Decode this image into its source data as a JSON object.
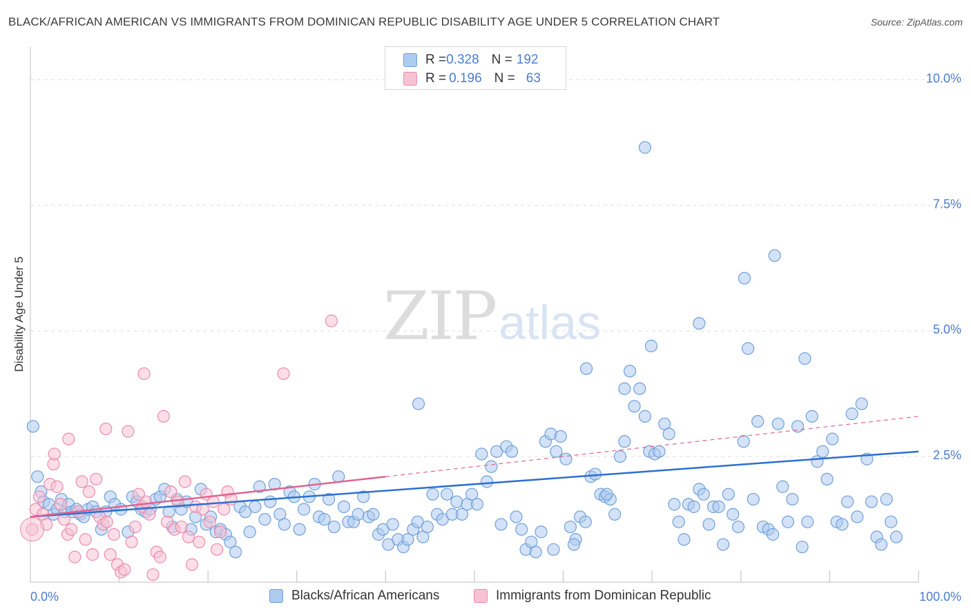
{
  "title": "BLACK/AFRICAN AMERICAN VS IMMIGRANTS FROM DOMINICAN REPUBLIC DISABILITY AGE UNDER 5 CORRELATION CHART",
  "source": "Source: ZipAtlas.com",
  "watermark": {
    "zip": "ZIP",
    "atlas": "atlas"
  },
  "colors": {
    "blue_fill": "#aecbf0",
    "blue_stroke": "#6f9fd8",
    "blue_line": "#2b6fd0",
    "pink_fill": "#f7c2d3",
    "pink_stroke": "#ec8aab",
    "pink_line": "#e0628f",
    "axis_text": "#4a7ccf",
    "grid": "#dedede"
  },
  "legend_top": [
    {
      "r_label": "R = ",
      "r_value": "0.328",
      "n_label": "N = ",
      "n_value": "192"
    },
    {
      "r_label": "R = ",
      "r_value": "0.196",
      "n_label": "N = ",
      "n_value": "63"
    }
  ],
  "chart_data": {
    "type": "scatter",
    "title": "BLACK/AFRICAN AMERICAN VS IMMIGRANTS FROM DOMINICAN REPUBLIC DISABILITY AGE UNDER 5 CORRELATION CHART",
    "xlabel": "",
    "ylabel": "Disability Age Under 5",
    "xlim": [
      0,
      100
    ],
    "ylim": [
      0,
      10.5
    ],
    "x_tick_labels": [
      "0.0%",
      "100.0%"
    ],
    "y_ticks": [
      2.5,
      5.0,
      7.5,
      10.0
    ],
    "y_tick_labels": [
      "2.5%",
      "5.0%",
      "7.5%",
      "10.0%"
    ],
    "grid": true,
    "legend_position": "bottom",
    "series": [
      {
        "name": "Blacks/African Americans",
        "color": "blue",
        "trend": {
          "x": [
            0,
            100
          ],
          "y": [
            1.3,
            2.6
          ],
          "dashed_from": null
        },
        "points": [
          [
            0.3,
            3.1
          ],
          [
            0.8,
            2.1
          ],
          [
            1.2,
            1.8
          ],
          [
            1.5,
            1.6
          ],
          [
            2.1,
            1.55
          ],
          [
            2.6,
            1.35
          ],
          [
            3.0,
            1.45
          ],
          [
            3.5,
            1.65
          ],
          [
            3.9,
            1.4
          ],
          [
            4.3,
            1.55
          ],
          [
            4.7,
            1.4
          ],
          [
            5.2,
            1.45
          ],
          [
            5.6,
            1.35
          ],
          [
            6.0,
            1.3
          ],
          [
            6.5,
            1.45
          ],
          [
            7.0,
            1.5
          ],
          [
            7.4,
            1.4
          ],
          [
            8.0,
            1.05
          ],
          [
            8.5,
            1.4
          ],
          [
            9.0,
            1.7
          ],
          [
            9.5,
            1.55
          ],
          [
            10.2,
            1.45
          ],
          [
            11.0,
            1.0
          ],
          [
            11.5,
            1.7
          ],
          [
            12.0,
            1.6
          ],
          [
            12.5,
            1.45
          ],
          [
            13.0,
            1.4
          ],
          [
            13.5,
            1.45
          ],
          [
            14.1,
            1.65
          ],
          [
            14.6,
            1.7
          ],
          [
            15.1,
            1.85
          ],
          [
            15.6,
            1.4
          ],
          [
            16.0,
            1.1
          ],
          [
            16.5,
            1.65
          ],
          [
            17.0,
            1.45
          ],
          [
            17.6,
            1.6
          ],
          [
            18.1,
            1.05
          ],
          [
            18.6,
            1.3
          ],
          [
            19.2,
            1.85
          ],
          [
            19.8,
            1.15
          ],
          [
            20.3,
            1.3
          ],
          [
            20.9,
            1.0
          ],
          [
            21.4,
            1.05
          ],
          [
            22.0,
            0.95
          ],
          [
            22.5,
            0.8
          ],
          [
            23.1,
            0.6
          ],
          [
            23.6,
            1.5
          ],
          [
            24.2,
            1.4
          ],
          [
            24.7,
            1.0
          ],
          [
            25.3,
            1.5
          ],
          [
            25.8,
            1.9
          ],
          [
            26.4,
            1.25
          ],
          [
            27.0,
            1.6
          ],
          [
            27.5,
            1.95
          ],
          [
            28.1,
            1.35
          ],
          [
            28.6,
            1.15
          ],
          [
            29.2,
            1.8
          ],
          [
            29.7,
            1.7
          ],
          [
            30.3,
            1.05
          ],
          [
            30.8,
            1.45
          ],
          [
            31.4,
            1.7
          ],
          [
            32.0,
            1.95
          ],
          [
            32.5,
            1.3
          ],
          [
            33.1,
            1.25
          ],
          [
            33.6,
            1.65
          ],
          [
            34.2,
            1.1
          ],
          [
            34.7,
            2.1
          ],
          [
            35.3,
            1.5
          ],
          [
            35.8,
            1.2
          ],
          [
            36.4,
            1.2
          ],
          [
            36.9,
            1.35
          ],
          [
            37.5,
            1.7
          ],
          [
            38.1,
            1.3
          ],
          [
            38.6,
            1.35
          ],
          [
            39.2,
            0.95
          ],
          [
            39.7,
            1.05
          ],
          [
            40.3,
            0.75
          ],
          [
            40.8,
            1.15
          ],
          [
            41.4,
            0.85
          ],
          [
            42.0,
            0.7
          ],
          [
            42.5,
            0.85
          ],
          [
            43.1,
            1.05
          ],
          [
            43.6,
            1.2
          ],
          [
            44.2,
            0.9
          ],
          [
            44.7,
            1.1
          ],
          [
            45.3,
            1.75
          ],
          [
            45.8,
            1.35
          ],
          [
            46.4,
            1.25
          ],
          [
            46.9,
            1.75
          ],
          [
            47.5,
            1.35
          ],
          [
            48.0,
            1.6
          ],
          [
            48.6,
            1.35
          ],
          [
            49.2,
            1.55
          ],
          [
            49.7,
            1.75
          ],
          [
            50.3,
            1.55
          ],
          [
            50.8,
            2.55
          ],
          [
            51.4,
            2.0
          ],
          [
            51.9,
            2.3
          ],
          [
            52.5,
            2.6
          ],
          [
            53.0,
            1.15
          ],
          [
            53.6,
            2.7
          ],
          [
            54.2,
            2.6
          ],
          [
            54.7,
            1.3
          ],
          [
            55.3,
            1.05
          ],
          [
            55.8,
            0.65
          ],
          [
            56.4,
            0.8
          ],
          [
            56.9,
            0.6
          ],
          [
            57.5,
            1.0
          ],
          [
            58.0,
            2.8
          ],
          [
            58.6,
            2.95
          ],
          [
            59.2,
            2.6
          ],
          [
            59.7,
            2.9
          ],
          [
            60.3,
            2.45
          ],
          [
            60.8,
            1.1
          ],
          [
            61.4,
            0.85
          ],
          [
            61.9,
            1.3
          ],
          [
            62.5,
            1.2
          ],
          [
            63.1,
            2.1
          ],
          [
            63.6,
            2.15
          ],
          [
            64.2,
            1.75
          ],
          [
            64.7,
            1.7
          ],
          [
            65.3,
            1.65
          ],
          [
            65.8,
            1.35
          ],
          [
            66.4,
            2.5
          ],
          [
            66.9,
            2.8
          ],
          [
            67.5,
            4.2
          ],
          [
            68.0,
            3.5
          ],
          [
            68.6,
            3.85
          ],
          [
            69.2,
            3.3
          ],
          [
            69.7,
            2.6
          ],
          [
            70.3,
            2.55
          ],
          [
            70.8,
            2.6
          ],
          [
            71.4,
            3.15
          ],
          [
            71.9,
            2.95
          ],
          [
            72.5,
            1.55
          ],
          [
            73.0,
            1.2
          ],
          [
            73.6,
            0.85
          ],
          [
            74.1,
            1.55
          ],
          [
            74.7,
            1.5
          ],
          [
            75.3,
            1.85
          ],
          [
            75.8,
            1.75
          ],
          [
            76.4,
            1.15
          ],
          [
            76.9,
            1.5
          ],
          [
            77.5,
            1.5
          ],
          [
            78.0,
            0.75
          ],
          [
            78.6,
            1.75
          ],
          [
            79.1,
            1.35
          ],
          [
            79.7,
            1.1
          ],
          [
            80.3,
            2.8
          ],
          [
            80.8,
            4.65
          ],
          [
            81.4,
            1.65
          ],
          [
            81.9,
            3.2
          ],
          [
            82.5,
            1.1
          ],
          [
            83.1,
            1.05
          ],
          [
            83.6,
            0.95
          ],
          [
            84.2,
            3.15
          ],
          [
            84.7,
            1.9
          ],
          [
            85.3,
            1.2
          ],
          [
            85.8,
            1.65
          ],
          [
            86.4,
            3.1
          ],
          [
            86.9,
            0.7
          ],
          [
            87.5,
            1.2
          ],
          [
            88.0,
            3.3
          ],
          [
            88.6,
            2.4
          ],
          [
            89.2,
            2.6
          ],
          [
            89.7,
            2.05
          ],
          [
            90.3,
            2.85
          ],
          [
            90.8,
            1.2
          ],
          [
            91.4,
            1.15
          ],
          [
            92.0,
            1.6
          ],
          [
            92.5,
            3.35
          ],
          [
            93.1,
            1.3
          ],
          [
            93.6,
            3.55
          ],
          [
            94.2,
            2.45
          ],
          [
            94.7,
            1.6
          ],
          [
            95.3,
            0.9
          ],
          [
            95.8,
            0.75
          ],
          [
            96.4,
            1.65
          ],
          [
            96.9,
            1.2
          ],
          [
            97.5,
            0.9
          ],
          [
            58.9,
            0.65
          ],
          [
            61.2,
            0.75
          ],
          [
            64.9,
            1.75
          ],
          [
            69.2,
            8.65
          ],
          [
            83.8,
            6.5
          ],
          [
            80.4,
            6.05
          ],
          [
            75.3,
            5.15
          ],
          [
            69.9,
            4.7
          ],
          [
            87.2,
            4.45
          ],
          [
            62.6,
            4.25
          ],
          [
            66.9,
            3.85
          ],
          [
            43.7,
            3.55
          ]
        ]
      },
      {
        "name": "Immigrants from Dominican Republic",
        "color": "pink",
        "trend": {
          "x": [
            0,
            40
          ],
          "y": [
            1.3,
            2.1
          ],
          "dashed_from": 40,
          "x_end": 100,
          "y_end": 3.3
        },
        "points": [
          [
            0.2,
            1.05
          ],
          [
            0.6,
            1.45
          ],
          [
            1.0,
            1.7
          ],
          [
            1.4,
            1.35
          ],
          [
            1.8,
            1.15
          ],
          [
            2.2,
            1.95
          ],
          [
            2.6,
            2.35
          ],
          [
            3.0,
            1.9
          ],
          [
            3.4,
            1.55
          ],
          [
            3.8,
            1.25
          ],
          [
            4.2,
            0.95
          ],
          [
            4.6,
            1.05
          ],
          [
            5.0,
            0.5
          ],
          [
            5.4,
            1.4
          ],
          [
            5.8,
            2.0
          ],
          [
            6.2,
            0.85
          ],
          [
            6.6,
            1.8
          ],
          [
            7.0,
            0.55
          ],
          [
            7.4,
            2.05
          ],
          [
            7.8,
            1.3
          ],
          [
            8.2,
            1.15
          ],
          [
            8.6,
            1.2
          ],
          [
            9.0,
            0.55
          ],
          [
            9.4,
            0.95
          ],
          [
            9.8,
            0.35
          ],
          [
            10.2,
            0.2
          ],
          [
            10.6,
            0.25
          ],
          [
            11.0,
            3.0
          ],
          [
            11.4,
            0.8
          ],
          [
            11.8,
            1.1
          ],
          [
            12.2,
            1.75
          ],
          [
            12.6,
            1.5
          ],
          [
            13.0,
            1.6
          ],
          [
            13.4,
            1.35
          ],
          [
            13.8,
            0.15
          ],
          [
            14.2,
            0.6
          ],
          [
            14.6,
            0.5
          ],
          [
            15.0,
            3.3
          ],
          [
            15.4,
            1.2
          ],
          [
            15.8,
            1.8
          ],
          [
            16.2,
            1.05
          ],
          [
            16.6,
            1.6
          ],
          [
            17.0,
            1.1
          ],
          [
            17.4,
            2.0
          ],
          [
            17.8,
            0.9
          ],
          [
            18.2,
            0.35
          ],
          [
            18.6,
            1.5
          ],
          [
            19.0,
            0.8
          ],
          [
            19.4,
            1.45
          ],
          [
            19.8,
            1.75
          ],
          [
            20.2,
            1.2
          ],
          [
            20.6,
            1.6
          ],
          [
            21.0,
            0.65
          ],
          [
            21.4,
            1.0
          ],
          [
            21.8,
            1.45
          ],
          [
            22.2,
            1.8
          ],
          [
            22.6,
            1.65
          ],
          [
            8.5,
            3.05
          ],
          [
            4.3,
            2.85
          ],
          [
            12.8,
            4.15
          ],
          [
            28.5,
            4.15
          ],
          [
            33.9,
            5.2
          ],
          [
            2.7,
            2.55
          ]
        ]
      }
    ]
  },
  "legend_bottom": [
    "Blacks/African Americans",
    "Immigrants from Dominican Republic"
  ]
}
